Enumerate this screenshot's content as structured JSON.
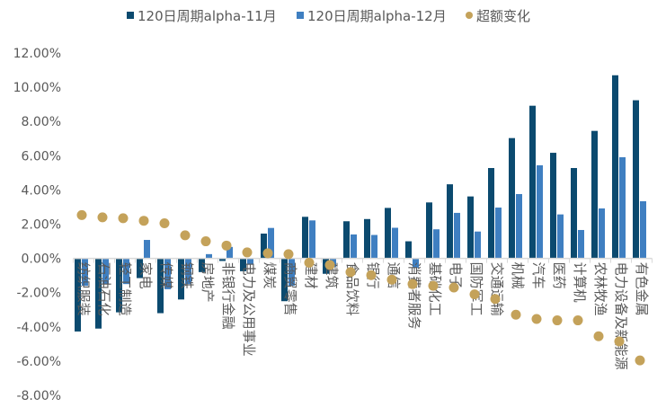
{
  "chart_data": {
    "type": "bar",
    "title": "",
    "xlabel": "",
    "ylabel": "",
    "ylim": [
      -8,
      12
    ],
    "yticks": [
      12,
      10,
      8,
      6,
      4,
      2,
      0,
      -2,
      -4,
      -6,
      -8
    ],
    "ytick_format": "percent_2dp",
    "grid": false,
    "legend_position": "top",
    "categories": [
      "纺织服装",
      "石油石化",
      "轻工制造",
      "家电",
      "传媒",
      "钢铁",
      "房地产",
      "非银行金融",
      "电力及公用事业",
      "煤炭",
      "商贸零售",
      "建材",
      "建筑",
      "食品饮料",
      "银行",
      "通信",
      "消费者服务",
      "基础化工",
      "电子",
      "国防军工",
      "交通运输",
      "机械",
      "汽车",
      "医药",
      "计算机",
      "农林牧渔",
      "电力设备及新能源",
      "有色金属"
    ],
    "series": [
      {
        "name": "120日周期alpha-11月",
        "type": "bar",
        "color": "#0b4a6f",
        "values": [
          -4.27,
          -4.1,
          -3.15,
          -1.15,
          -3.2,
          -2.4,
          -0.8,
          -0.15,
          -0.75,
          1.45,
          -2.5,
          2.43,
          -0.9,
          2.17,
          2.3,
          2.95,
          1.0,
          3.27,
          4.33,
          3.62,
          5.28,
          7.03,
          8.92,
          6.17,
          5.28,
          7.45,
          10.7,
          9.24
        ]
      },
      {
        "name": "120日周期alpha-12月",
        "type": "bar",
        "color": "#3f7fc1",
        "values": [
          -1.6,
          -1.5,
          -1.5,
          1.08,
          -1.8,
          -1.5,
          0.25,
          0.67,
          -0.37,
          1.78,
          -1.6,
          2.22,
          -0.5,
          1.4,
          1.37,
          1.79,
          -0.55,
          1.7,
          2.66,
          1.57,
          2.97,
          3.76,
          5.44,
          2.57,
          1.66,
          2.92,
          5.91,
          3.34
        ]
      },
      {
        "name": "超额变化",
        "type": "scatter",
        "color": "#c4a25a",
        "values": [
          2.53,
          2.4,
          2.35,
          2.2,
          2.05,
          1.35,
          1.0,
          0.75,
          0.35,
          0.3,
          0.25,
          -0.25,
          -0.38,
          -0.8,
          -0.98,
          -1.24,
          -1.5,
          -1.6,
          -1.7,
          -2.1,
          -2.37,
          -3.29,
          -3.54,
          -3.62,
          -3.62,
          -4.55,
          -4.85,
          -5.96
        ]
      }
    ]
  }
}
